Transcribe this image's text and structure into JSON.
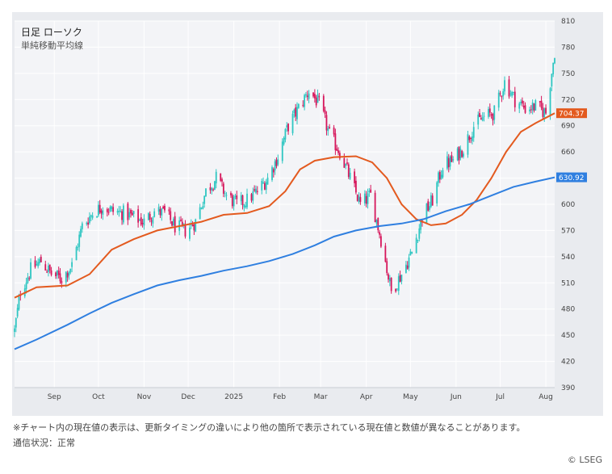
{
  "header": {
    "title": "日足 ローソク",
    "subtitle": "単純移動平均線"
  },
  "footer": {
    "note": "※チャート内の現在値の表示は、更新タイミングの違いにより他の箇所で表示されている現在値と数値が異なることがあります。",
    "status": "通信状況：正常",
    "copyright": "© LSEG"
  },
  "colors": {
    "up": "#2fc6c2",
    "down": "#d6165b",
    "ma_short": "#e35a1f",
    "ma_long": "#2f7fe0",
    "grid": "#ffffff",
    "background": "#e9ebef"
  },
  "chart_data": {
    "type": "candlestick",
    "y_ticks": [
      390,
      420,
      450,
      480,
      510,
      540,
      570,
      600,
      630,
      660,
      690,
      720,
      750,
      780,
      810
    ],
    "ylim": [
      390,
      810
    ],
    "x_labels": [
      "Sep",
      "Oct",
      "Nov",
      "Dec",
      "2025",
      "Feb",
      "Mar",
      "Apr",
      "May",
      "Jun",
      "Jul",
      "Aug"
    ],
    "close_path": [
      [
        "2024-08-05",
        455
      ],
      [
        "2024-08-09",
        500
      ],
      [
        "2024-08-16",
        525
      ],
      [
        "2024-08-23",
        535
      ],
      [
        "2024-08-30",
        520
      ],
      [
        "2024-09-06",
        515
      ],
      [
        "2024-09-13",
        530
      ],
      [
        "2024-09-20",
        575
      ],
      [
        "2024-09-27",
        590
      ],
      [
        "2024-10-04",
        598
      ],
      [
        "2024-10-11",
        592
      ],
      [
        "2024-10-18",
        590
      ],
      [
        "2024-10-25",
        585
      ],
      [
        "2024-11-01",
        580
      ],
      [
        "2024-11-08",
        592
      ],
      [
        "2024-11-15",
        590
      ],
      [
        "2024-11-22",
        575
      ],
      [
        "2024-11-29",
        570
      ],
      [
        "2024-12-06",
        580
      ],
      [
        "2024-12-13",
        615
      ],
      [
        "2024-12-20",
        630
      ],
      [
        "2024-12-27",
        610
      ],
      [
        "2025-01-03",
        600
      ],
      [
        "2025-01-10",
        605
      ],
      [
        "2025-01-17",
        615
      ],
      [
        "2025-01-24",
        630
      ],
      [
        "2025-01-31",
        655
      ],
      [
        "2025-02-07",
        690
      ],
      [
        "2025-02-14",
        710
      ],
      [
        "2025-02-21",
        730
      ],
      [
        "2025-02-28",
        715
      ],
      [
        "2025-03-07",
        680
      ],
      [
        "2025-03-14",
        660
      ],
      [
        "2025-03-21",
        630
      ],
      [
        "2025-03-28",
        600
      ],
      [
        "2025-04-04",
        610
      ],
      [
        "2025-04-11",
        560
      ],
      [
        "2025-04-18",
        500
      ],
      [
        "2025-04-25",
        520
      ],
      [
        "2025-05-02",
        545
      ],
      [
        "2025-05-09",
        585
      ],
      [
        "2025-05-16",
        605
      ],
      [
        "2025-05-23",
        645
      ],
      [
        "2025-05-30",
        650
      ],
      [
        "2025-06-06",
        665
      ],
      [
        "2025-06-13",
        690
      ],
      [
        "2025-06-20",
        700
      ],
      [
        "2025-06-27",
        705
      ],
      [
        "2025-07-04",
        740
      ],
      [
        "2025-07-11",
        720
      ],
      [
        "2025-07-18",
        710
      ],
      [
        "2025-07-25",
        712
      ],
      [
        "2025-08-01",
        705
      ],
      [
        "2025-08-07",
        775
      ]
    ],
    "series": [
      {
        "points": [
          [
            "2024-08-05",
            493
          ],
          [
            "2024-08-20",
            505
          ],
          [
            "2024-09-10",
            507
          ],
          [
            "2024-09-25",
            520
          ],
          [
            "2024-10-10",
            548
          ],
          [
            "2024-10-25",
            560
          ],
          [
            "2024-11-10",
            570
          ],
          [
            "2024-11-25",
            575
          ],
          [
            "2024-12-10",
            580
          ],
          [
            "2024-12-25",
            588
          ],
          [
            "2025-01-10",
            590
          ],
          [
            "2025-01-25",
            598
          ],
          [
            "2025-02-05",
            615
          ],
          [
            "2025-02-15",
            640
          ],
          [
            "2025-02-25",
            650
          ],
          [
            "2025-03-10",
            654
          ],
          [
            "2025-03-25",
            655
          ],
          [
            "2025-04-05",
            648
          ],
          [
            "2025-04-15",
            630
          ],
          [
            "2025-04-25",
            600
          ],
          [
            "2025-05-05",
            583
          ],
          [
            "2025-05-15",
            576
          ],
          [
            "2025-05-25",
            578
          ],
          [
            "2025-06-05",
            588
          ],
          [
            "2025-06-15",
            605
          ],
          [
            "2025-06-25",
            630
          ],
          [
            "2025-07-05",
            660
          ],
          [
            "2025-07-15",
            683
          ],
          [
            "2025-07-25",
            693
          ],
          [
            "2025-08-07",
            704.37
          ]
        ],
        "last_value_label": "704.37"
      },
      {
        "points": [
          [
            "2024-08-05",
            434
          ],
          [
            "2024-08-20",
            445
          ],
          [
            "2024-09-10",
            462
          ],
          [
            "2024-09-25",
            475
          ],
          [
            "2024-10-10",
            487
          ],
          [
            "2024-10-25",
            497
          ],
          [
            "2024-11-10",
            507
          ],
          [
            "2024-11-25",
            513
          ],
          [
            "2024-12-10",
            518
          ],
          [
            "2024-12-25",
            524
          ],
          [
            "2025-01-10",
            529
          ],
          [
            "2025-01-25",
            535
          ],
          [
            "2025-02-10",
            543
          ],
          [
            "2025-02-25",
            553
          ],
          [
            "2025-03-10",
            563
          ],
          [
            "2025-03-25",
            570
          ],
          [
            "2025-04-10",
            575
          ],
          [
            "2025-04-25",
            578
          ],
          [
            "2025-05-10",
            583
          ],
          [
            "2025-05-25",
            592
          ],
          [
            "2025-06-10",
            600
          ],
          [
            "2025-06-25",
            610
          ],
          [
            "2025-07-10",
            620
          ],
          [
            "2025-07-25",
            626
          ],
          [
            "2025-08-07",
            630.92
          ]
        ],
        "last_value_label": "630.92"
      }
    ]
  }
}
